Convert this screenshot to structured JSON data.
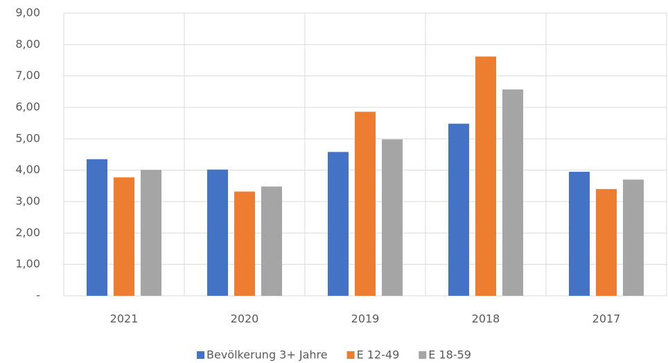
{
  "chart_data": {
    "type": "bar",
    "categories": [
      "2021",
      "2020",
      "2019",
      "2018",
      "2017"
    ],
    "series": [
      {
        "name": "Bevölkerung 3+ Jahre",
        "color": "#4472c4",
        "values": [
          4.35,
          4.02,
          4.58,
          5.48,
          3.95
        ]
      },
      {
        "name": "E 12-49",
        "color": "#ed7d31",
        "values": [
          3.77,
          3.32,
          5.86,
          7.62,
          3.4
        ]
      },
      {
        "name": "E 18-59",
        "color": "#a5a5a5",
        "values": [
          4.01,
          3.48,
          4.98,
          6.57,
          3.7
        ]
      }
    ],
    "ylim": [
      0,
      9
    ],
    "yticks": [
      {
        "value": 0,
        "label": "-"
      },
      {
        "value": 1,
        "label": "1,00"
      },
      {
        "value": 2,
        "label": "2,00"
      },
      {
        "value": 3,
        "label": "3,00"
      },
      {
        "value": 4,
        "label": "4,00"
      },
      {
        "value": 5,
        "label": "5,00"
      },
      {
        "value": 6,
        "label": "6,00"
      },
      {
        "value": 7,
        "label": "7,00"
      },
      {
        "value": 8,
        "label": "8,00"
      },
      {
        "value": 9,
        "label": "9,00"
      }
    ],
    "grid": true
  }
}
